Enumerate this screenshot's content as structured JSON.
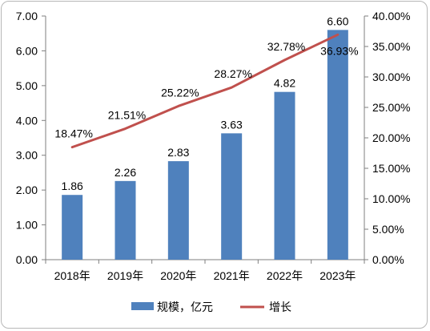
{
  "chart_data": {
    "type": "bar",
    "categories": [
      "2018年",
      "2019年",
      "2020年",
      "2021年",
      "2022年",
      "2023年"
    ],
    "series": [
      {
        "name": "规模，亿元",
        "kind": "bar",
        "axis": "left",
        "values": [
          1.86,
          2.26,
          2.83,
          3.63,
          4.82,
          6.6
        ],
        "labels": [
          "1.86",
          "2.26",
          "2.83",
          "3.63",
          "4.82",
          "6.60"
        ],
        "color": "#4f81bd"
      },
      {
        "name": "增长",
        "kind": "line",
        "axis": "right",
        "values": [
          18.47,
          21.51,
          25.22,
          28.27,
          32.78,
          36.93
        ],
        "labels": [
          "18.47%",
          "21.51%",
          "25.22%",
          "28.27%",
          "32.78%",
          "36.93%"
        ],
        "color": "#c0504d"
      }
    ],
    "left_axis": {
      "range": [
        0,
        7
      ],
      "ticks": [
        "0.00",
        "1.00",
        "2.00",
        "3.00",
        "4.00",
        "5.00",
        "6.00",
        "7.00"
      ]
    },
    "right_axis": {
      "range": [
        0,
        40
      ],
      "ticks": [
        "0.00%",
        "5.00%",
        "10.00%",
        "15.00%",
        "20.00%",
        "25.00%",
        "30.00%",
        "35.00%",
        "40.00%"
      ]
    },
    "grid": false,
    "legend": "bottom"
  }
}
